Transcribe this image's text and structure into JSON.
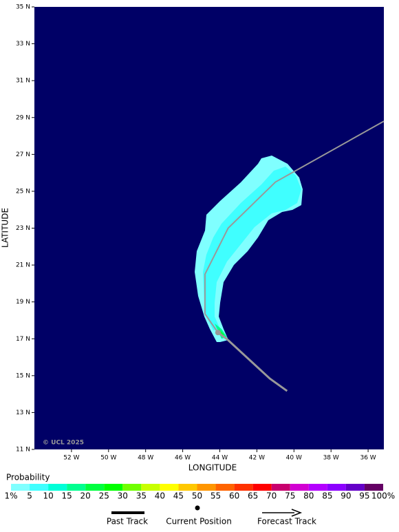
{
  "map": {
    "xlabel": "LONGITUDE",
    "ylabel": "LATITUDE",
    "copyright": "© UCL 2025",
    "xlim": [
      -54,
      -35.15
    ],
    "ylim": [
      11,
      35
    ],
    "xticks": [
      {
        "value": -52,
        "label": "52 W"
      },
      {
        "value": -50,
        "label": "50 W"
      },
      {
        "value": -48,
        "label": "48 W"
      },
      {
        "value": -46,
        "label": "46 W"
      },
      {
        "value": -44,
        "label": "44 W"
      },
      {
        "value": -42,
        "label": "42 W"
      },
      {
        "value": -40,
        "label": "40 W"
      },
      {
        "value": -38,
        "label": "38 W"
      },
      {
        "value": -36,
        "label": "36 W"
      }
    ],
    "yticks": [
      {
        "value": 11,
        "label": "11 N"
      },
      {
        "value": 13,
        "label": "13 N"
      },
      {
        "value": 15,
        "label": "15 N"
      },
      {
        "value": 17,
        "label": "17 N"
      },
      {
        "value": 19,
        "label": "19 N"
      },
      {
        "value": 21,
        "label": "21 N"
      },
      {
        "value": 23,
        "label": "23 N"
      },
      {
        "value": 25,
        "label": "25 N"
      },
      {
        "value": 27,
        "label": "27 N"
      },
      {
        "value": 29,
        "label": "29 N"
      },
      {
        "value": 31,
        "label": "31 N"
      },
      {
        "value": 33,
        "label": "33 N"
      },
      {
        "value": 35,
        "label": "35 N"
      }
    ],
    "track_color": "#999999",
    "past_track": {
      "lon": [
        -40.37,
        -41.3,
        -43.6,
        -44.1
      ],
      "lat": [
        14.17,
        14.84,
        16.97,
        17.34
      ]
    },
    "forecast_track": {
      "lon": [
        -44.1,
        -44.8,
        -44.8,
        -43.55,
        -41.0,
        -35.15
      ],
      "lat": [
        17.34,
        18.35,
        20.5,
        23.0,
        25.5,
        28.8
      ]
    }
  },
  "legend": {
    "title": "Probability",
    "labels": [
      "1%",
      "5",
      "10",
      "15",
      "20",
      "25",
      "30",
      "35",
      "40",
      "45",
      "50",
      "55",
      "60",
      "65",
      "70",
      "75",
      "80",
      "85",
      "90",
      "95",
      "100%"
    ],
    "colors": [
      "#80ffff",
      "#40ffff",
      "#00ffd8",
      "#00ff90",
      "#00ff40",
      "#00ff00",
      "#70ff00",
      "#c8ff00",
      "#ffff00",
      "#ffc800",
      "#ff9600",
      "#ff6400",
      "#ff3200",
      "#ff0000",
      "#c8006e",
      "#d200d2",
      "#b400ff",
      "#8c00ff",
      "#6400c8",
      "#640064"
    ],
    "past_track": "Past Track",
    "current_position": "Current Position",
    "forecast_track": "Forecast Track"
  }
}
